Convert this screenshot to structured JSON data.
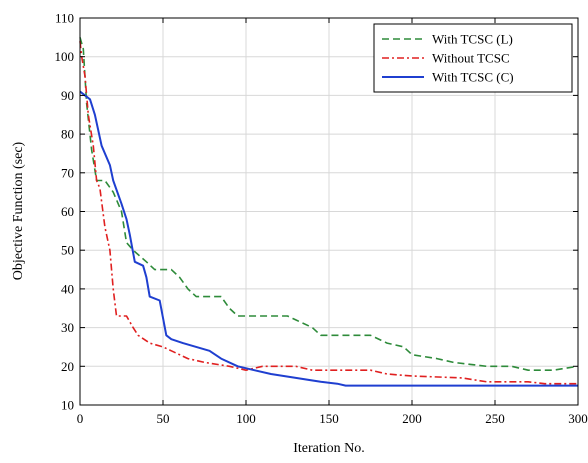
{
  "chart_data": {
    "type": "line",
    "title": "",
    "xlabel": "Iteration No.",
    "ylabel": "Objective Function (sec)",
    "xlim": [
      0,
      300
    ],
    "ylim": [
      10,
      110
    ],
    "xticks": [
      0,
      50,
      100,
      150,
      200,
      250,
      300
    ],
    "yticks": [
      10,
      20,
      30,
      40,
      50,
      60,
      70,
      80,
      90,
      100,
      110
    ],
    "grid": true,
    "legend_position": "top-right",
    "series": [
      {
        "name": "With TCSC (L)",
        "color": "#2e8b3a",
        "style": "dashed",
        "points": [
          [
            0,
            105
          ],
          [
            2,
            102
          ],
          [
            4,
            88
          ],
          [
            7,
            76
          ],
          [
            10,
            68
          ],
          [
            15,
            68
          ],
          [
            20,
            65
          ],
          [
            25,
            60
          ],
          [
            28,
            52
          ],
          [
            32,
            50
          ],
          [
            40,
            47
          ],
          [
            45,
            45
          ],
          [
            55,
            45
          ],
          [
            60,
            43
          ],
          [
            65,
            40
          ],
          [
            70,
            38
          ],
          [
            85,
            38
          ],
          [
            90,
            35
          ],
          [
            95,
            33
          ],
          [
            115,
            33
          ],
          [
            125,
            33
          ],
          [
            130,
            32
          ],
          [
            140,
            30
          ],
          [
            145,
            28
          ],
          [
            175,
            28
          ],
          [
            185,
            26
          ],
          [
            195,
            25
          ],
          [
            200,
            23
          ],
          [
            215,
            22
          ],
          [
            225,
            21
          ],
          [
            245,
            20
          ],
          [
            260,
            20
          ],
          [
            270,
            19
          ],
          [
            285,
            19
          ],
          [
            300,
            20
          ]
        ]
      },
      {
        "name": "Without TCSC",
        "color": "#e02020",
        "style": "dashdot",
        "points": [
          [
            0,
            104
          ],
          [
            1,
            100
          ],
          [
            3,
            95
          ],
          [
            5,
            85
          ],
          [
            8,
            77
          ],
          [
            10,
            68
          ],
          [
            12,
            66
          ],
          [
            15,
            56
          ],
          [
            18,
            50
          ],
          [
            20,
            40
          ],
          [
            22,
            33
          ],
          [
            28,
            33
          ],
          [
            32,
            30
          ],
          [
            35,
            28
          ],
          [
            42,
            26
          ],
          [
            50,
            25
          ],
          [
            55,
            24
          ],
          [
            65,
            22
          ],
          [
            75,
            21
          ],
          [
            90,
            20
          ],
          [
            100,
            19
          ],
          [
            110,
            20
          ],
          [
            130,
            20
          ],
          [
            140,
            19
          ],
          [
            175,
            19
          ],
          [
            185,
            18
          ],
          [
            200,
            17.5
          ],
          [
            230,
            17
          ],
          [
            245,
            16
          ],
          [
            270,
            16
          ],
          [
            280,
            15.5
          ],
          [
            300,
            15.5
          ]
        ]
      },
      {
        "name": "With TCSC (C)",
        "color": "#1f3fd0",
        "style": "solid",
        "points": [
          [
            0,
            91
          ],
          [
            3,
            90
          ],
          [
            6,
            89
          ],
          [
            9,
            85
          ],
          [
            13,
            77
          ],
          [
            18,
            72
          ],
          [
            20,
            68
          ],
          [
            25,
            62
          ],
          [
            28,
            58
          ],
          [
            30,
            54
          ],
          [
            33,
            47
          ],
          [
            38,
            46
          ],
          [
            40,
            43
          ],
          [
            42,
            38
          ],
          [
            48,
            37
          ],
          [
            52,
            28
          ],
          [
            55,
            27
          ],
          [
            62,
            26
          ],
          [
            70,
            25
          ],
          [
            78,
            24
          ],
          [
            85,
            22
          ],
          [
            95,
            20
          ],
          [
            105,
            19
          ],
          [
            115,
            18
          ],
          [
            130,
            17
          ],
          [
            145,
            16
          ],
          [
            155,
            15.5
          ],
          [
            160,
            15
          ],
          [
            300,
            15
          ]
        ]
      }
    ]
  }
}
